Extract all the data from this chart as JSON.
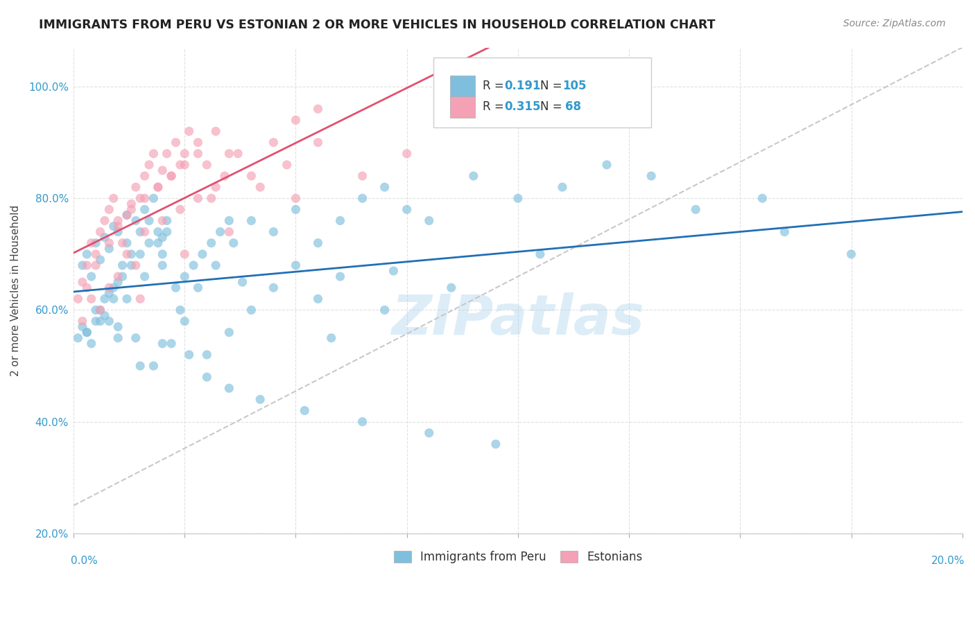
{
  "title": "IMMIGRANTS FROM PERU VS ESTONIAN 2 OR MORE VEHICLES IN HOUSEHOLD CORRELATION CHART",
  "source": "Source: ZipAtlas.com",
  "ylabel": "2 or more Vehicles in Household",
  "legend_blue_label": "Immigrants from Peru",
  "legend_pink_label": "Estonians",
  "R_blue": "0.191",
  "N_blue": "105",
  "R_pink": "0.315",
  "N_pink": "68",
  "blue_color": "#7fbfdd",
  "pink_color": "#f4a0b5",
  "blue_line_color": "#2070b4",
  "pink_line_color": "#e05070",
  "dashed_line_color": "#c8c8c8",
  "watermark": "ZIPatlas",
  "xmin": 0.0,
  "xmax": 20.0,
  "ymin": 20.0,
  "ymax": 107.0,
  "blue_scatter_x": [
    0.1,
    0.2,
    0.3,
    0.4,
    0.5,
    0.6,
    0.7,
    0.8,
    0.9,
    1.0,
    0.2,
    0.3,
    0.4,
    0.5,
    0.6,
    0.7,
    0.8,
    0.9,
    1.0,
    1.1,
    1.2,
    1.3,
    1.4,
    1.5,
    1.6,
    1.7,
    1.8,
    1.9,
    2.0,
    2.1,
    0.5,
    0.7,
    0.9,
    1.1,
    1.3,
    1.5,
    1.7,
    1.9,
    2.1,
    2.3,
    2.5,
    2.7,
    2.9,
    3.1,
    3.3,
    3.5,
    0.8,
    1.2,
    1.6,
    2.0,
    2.4,
    2.8,
    3.2,
    3.6,
    4.0,
    4.5,
    5.0,
    5.5,
    6.0,
    6.5,
    7.0,
    7.5,
    8.0,
    9.0,
    10.0,
    11.0,
    12.0,
    14.0,
    16.0,
    17.5,
    1.0,
    1.5,
    2.0,
    2.5,
    3.0,
    3.5,
    4.0,
    4.5,
    5.0,
    5.5,
    6.0,
    7.0,
    8.5,
    10.5,
    13.0,
    15.5,
    0.3,
    0.6,
    1.0,
    1.4,
    1.8,
    2.2,
    2.6,
    3.0,
    3.5,
    4.2,
    5.2,
    6.5,
    8.0,
    9.5,
    1.2,
    2.0,
    3.8,
    5.8,
    7.2
  ],
  "blue_scatter_y": [
    55,
    57,
    56,
    54,
    58,
    60,
    59,
    63,
    62,
    65,
    68,
    70,
    66,
    72,
    69,
    73,
    71,
    75,
    74,
    68,
    72,
    70,
    76,
    74,
    78,
    76,
    80,
    72,
    68,
    74,
    60,
    62,
    64,
    66,
    68,
    70,
    72,
    74,
    76,
    64,
    66,
    68,
    70,
    72,
    74,
    76,
    58,
    62,
    66,
    70,
    60,
    64,
    68,
    72,
    76,
    74,
    78,
    72,
    76,
    80,
    82,
    78,
    76,
    84,
    80,
    82,
    86,
    78,
    74,
    70,
    55,
    50,
    54,
    58,
    52,
    56,
    60,
    64,
    68,
    62,
    66,
    60,
    64,
    70,
    84,
    80,
    56,
    58,
    57,
    55,
    50,
    54,
    52,
    48,
    46,
    44,
    42,
    40,
    38,
    36,
    77,
    73,
    65,
    55,
    67
  ],
  "pink_scatter_x": [
    0.1,
    0.2,
    0.3,
    0.4,
    0.5,
    0.6,
    0.7,
    0.8,
    0.9,
    1.0,
    1.1,
    1.2,
    1.3,
    1.4,
    1.5,
    1.6,
    1.7,
    1.8,
    1.9,
    2.0,
    2.1,
    2.2,
    2.3,
    2.4,
    2.5,
    2.6,
    2.8,
    3.0,
    3.2,
    3.5,
    4.0,
    4.5,
    5.0,
    5.5,
    0.3,
    0.5,
    0.8,
    1.0,
    1.3,
    1.6,
    1.9,
    2.2,
    2.5,
    2.8,
    3.1,
    3.4,
    3.7,
    4.2,
    4.8,
    5.5,
    0.2,
    0.4,
    0.6,
    0.8,
    1.0,
    1.2,
    1.4,
    1.6,
    2.0,
    2.4,
    2.8,
    3.2,
    6.5,
    7.5,
    1.5,
    2.5,
    3.5,
    5.0
  ],
  "pink_scatter_y": [
    62,
    65,
    68,
    72,
    70,
    74,
    76,
    78,
    80,
    75,
    72,
    77,
    79,
    82,
    80,
    84,
    86,
    88,
    82,
    85,
    88,
    84,
    90,
    86,
    88,
    92,
    90,
    86,
    92,
    88,
    84,
    90,
    94,
    96,
    64,
    68,
    72,
    76,
    78,
    80,
    82,
    84,
    86,
    88,
    80,
    84,
    88,
    82,
    86,
    90,
    58,
    62,
    60,
    64,
    66,
    70,
    68,
    74,
    76,
    78,
    80,
    82,
    84,
    88,
    62,
    70,
    74,
    80
  ],
  "yticks": [
    20,
    40,
    60,
    80,
    100
  ],
  "background_color": "#ffffff",
  "grid_color": "#e0e0e0"
}
